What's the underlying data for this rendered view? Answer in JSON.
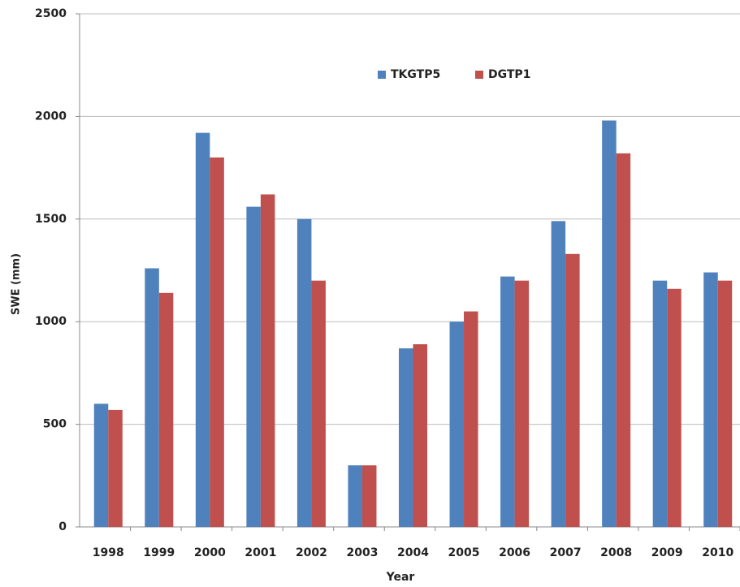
{
  "chart_data": {
    "type": "bar",
    "x_label": "Year",
    "y_label": "SWE (mm)",
    "categories": [
      "1998",
      "1999",
      "2000",
      "2001",
      "2002",
      "2003",
      "2004",
      "2005",
      "2006",
      "2007",
      "2008",
      "2009",
      "2010"
    ],
    "series": [
      {
        "name": "TKGTP5",
        "color": "#4f81bd",
        "values": [
          600,
          1260,
          1920,
          1560,
          1500,
          300,
          870,
          1000,
          1220,
          1490,
          1980,
          1200,
          1240
        ]
      },
      {
        "name": "DGTP1",
        "color": "#c0504d",
        "values": [
          570,
          1140,
          1800,
          1620,
          1200,
          300,
          890,
          1050,
          1200,
          1330,
          1820,
          1160,
          1200
        ]
      }
    ],
    "ylim": [
      0,
      2500
    ],
    "yticks": [
      0,
      500,
      1000,
      1500,
      2000,
      2500
    ],
    "grid": true,
    "legend": "top"
  }
}
